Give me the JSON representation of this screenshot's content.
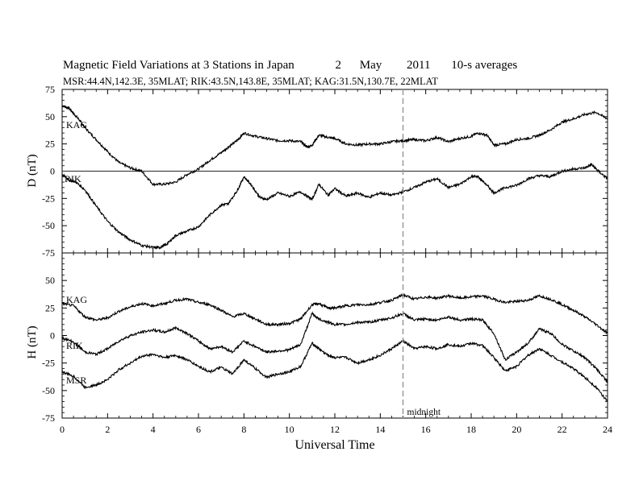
{
  "header": {
    "title_main": "Magnetic Field Variations at 3 Stations in Japan",
    "title_day": "2",
    "title_month": "May",
    "title_year": "2011",
    "title_avg": "10-s averages",
    "subtitle": "MSR:44.4N,142.3E, 35MLAT;   RIK:43.5N,143.8E, 35MLAT;   KAG:31.5N,130.7E, 22MLAT"
  },
  "chart_data": [
    {
      "type": "line",
      "panel": "D",
      "ylabel": "D (nT)",
      "xlabel": "",
      "xlim": [
        0,
        24
      ],
      "ylim": [
        -75,
        75
      ],
      "yticks": [
        75,
        50,
        25,
        0,
        -25,
        -50,
        -75
      ],
      "xticks": [
        0,
        2,
        4,
        6,
        8,
        10,
        12,
        14,
        16,
        18,
        20,
        22,
        24
      ],
      "zero_line": true,
      "series": [
        {
          "name": "KAG",
          "x": [
            0,
            0.3,
            0.5,
            0.8,
            1,
            1.5,
            2,
            2.5,
            3,
            3.5,
            4,
            4.5,
            5,
            5.5,
            6,
            6.5,
            7,
            7.3,
            7.7,
            8,
            8.5,
            9,
            9.5,
            10,
            10.5,
            10.8,
            11,
            11.3,
            11.7,
            12,
            12.5,
            13,
            13.5,
            14,
            14.5,
            15,
            15.5,
            16,
            16.5,
            17,
            17.5,
            18,
            18.3,
            18.7,
            19,
            19.5,
            20,
            20.5,
            21,
            21.5,
            22,
            22.5,
            23,
            23.5,
            24
          ],
          "values": [
            60,
            58,
            53,
            46,
            40,
            29,
            18,
            8,
            3,
            0,
            -12,
            -12,
            -10,
            -3,
            2,
            10,
            17,
            22,
            28,
            35,
            32,
            30,
            28,
            28,
            27,
            22,
            24,
            33,
            31,
            30,
            25,
            24,
            25,
            25,
            27,
            28,
            29,
            28,
            31,
            27,
            30,
            32,
            35,
            33,
            24,
            25,
            29,
            30,
            33,
            38,
            45,
            48,
            52,
            54,
            48
          ]
        },
        {
          "name": "RIK",
          "x": [
            0,
            0.3,
            0.6,
            1,
            1.5,
            2,
            2.5,
            3,
            3.5,
            4,
            4.3,
            4.6,
            5,
            5.5,
            6,
            6.5,
            7,
            7.3,
            7.7,
            8,
            8.3,
            8.7,
            9,
            9.5,
            10,
            10.5,
            11,
            11.3,
            11.7,
            12,
            12.5,
            13,
            13.5,
            14,
            14.5,
            15,
            15.5,
            16,
            16.5,
            17,
            17.5,
            18,
            18.3,
            18.7,
            19,
            19.5,
            20,
            20.5,
            21,
            21.5,
            22,
            22.5,
            23,
            23.3,
            23.6,
            24
          ],
          "values": [
            -3,
            -8,
            -10,
            -17,
            -32,
            -46,
            -56,
            -63,
            -68,
            -70,
            -70,
            -67,
            -59,
            -55,
            -51,
            -40,
            -31,
            -30,
            -18,
            -5,
            -12,
            -24,
            -26,
            -20,
            -23,
            -19,
            -26,
            -12,
            -22,
            -16,
            -23,
            -20,
            -24,
            -20,
            -22,
            -19,
            -15,
            -10,
            -7,
            -15,
            -12,
            -5,
            -5,
            -13,
            -20,
            -15,
            -13,
            -7,
            -4,
            -5,
            0,
            2,
            3,
            6,
            0,
            -7
          ]
        }
      ]
    },
    {
      "type": "line",
      "panel": "H",
      "ylabel": "H (nT)",
      "xlabel": "Universal Time",
      "xlim": [
        0,
        24
      ],
      "ylim": [
        -75,
        75
      ],
      "yticks": [
        50,
        25,
        0,
        -25,
        -50,
        -75
      ],
      "xticks": [
        0,
        2,
        4,
        6,
        8,
        10,
        12,
        14,
        16,
        18,
        20,
        22,
        24
      ],
      "marker": {
        "x": 15,
        "label": "midnight"
      },
      "series": [
        {
          "name": "KAG",
          "x": [
            0,
            0.5,
            1,
            1.5,
            2,
            2.5,
            3,
            3.5,
            4,
            4.5,
            5,
            5.5,
            6,
            6.5,
            7,
            7.5,
            8,
            8.5,
            9,
            9.5,
            10,
            10.5,
            11,
            11.3,
            11.7,
            12,
            12.5,
            13,
            13.5,
            14,
            14.5,
            15,
            15.5,
            16,
            16.5,
            17,
            17.5,
            18,
            18.5,
            19,
            19.5,
            20,
            20.5,
            21,
            21.5,
            22,
            22.5,
            23,
            23.5,
            24
          ],
          "values": [
            29,
            27,
            17,
            14,
            16,
            22,
            26,
            29,
            27,
            29,
            32,
            33,
            30,
            28,
            23,
            17,
            20,
            15,
            10,
            10,
            11,
            15,
            28,
            29,
            25,
            25,
            27,
            28,
            28,
            30,
            32,
            37,
            33,
            35,
            34,
            36,
            34,
            35,
            36,
            33,
            30,
            31,
            32,
            36,
            33,
            28,
            23,
            17,
            10,
            2
          ]
        },
        {
          "name": "RIK",
          "x": [
            0,
            0.5,
            1,
            1.5,
            2,
            2.5,
            3,
            3.5,
            4,
            4.5,
            5,
            5.5,
            6,
            6.5,
            7,
            7.5,
            8,
            8.5,
            9,
            9.5,
            10,
            10.5,
            11,
            11.3,
            11.7,
            12,
            12.5,
            13,
            13.5,
            14,
            14.5,
            15,
            15.5,
            16,
            16.5,
            17,
            17.5,
            18,
            18.5,
            19,
            19.5,
            20,
            20.5,
            21,
            21.5,
            22,
            22.5,
            23,
            23.5,
            24
          ],
          "values": [
            -2,
            -6,
            -15,
            -17,
            -12,
            -5,
            0,
            3,
            5,
            3,
            7,
            2,
            -5,
            -12,
            -10,
            -15,
            -5,
            -10,
            -15,
            -14,
            -13,
            -8,
            20,
            15,
            12,
            10,
            10,
            12,
            12,
            14,
            16,
            20,
            14,
            15,
            14,
            17,
            14,
            15,
            14,
            2,
            -22,
            -15,
            -7,
            6,
            2,
            -8,
            -14,
            -20,
            -30,
            -42
          ]
        },
        {
          "name": "MSR",
          "x": [
            0,
            0.5,
            1,
            1.5,
            2,
            2.5,
            3,
            3.5,
            4,
            4.5,
            5,
            5.5,
            6,
            6.5,
            7,
            7.5,
            8,
            8.5,
            9,
            9.5,
            10,
            10.5,
            11,
            11.3,
            11.7,
            12,
            12.5,
            13,
            13.5,
            14,
            14.5,
            15,
            15.5,
            16,
            16.5,
            17,
            17.5,
            18,
            18.5,
            19,
            19.5,
            20,
            20.5,
            21,
            21.5,
            22,
            22.5,
            23,
            23.5,
            24
          ],
          "values": [
            -33,
            -37,
            -47,
            -45,
            -40,
            -31,
            -25,
            -19,
            -17,
            -20,
            -18,
            -22,
            -28,
            -33,
            -29,
            -35,
            -22,
            -30,
            -38,
            -35,
            -33,
            -28,
            -7,
            -12,
            -18,
            -20,
            -20,
            -25,
            -22,
            -18,
            -12,
            -5,
            -12,
            -10,
            -12,
            -8,
            -10,
            -7,
            -9,
            -20,
            -32,
            -28,
            -18,
            -12,
            -18,
            -24,
            -30,
            -38,
            -47,
            -60
          ]
        }
      ]
    }
  ]
}
